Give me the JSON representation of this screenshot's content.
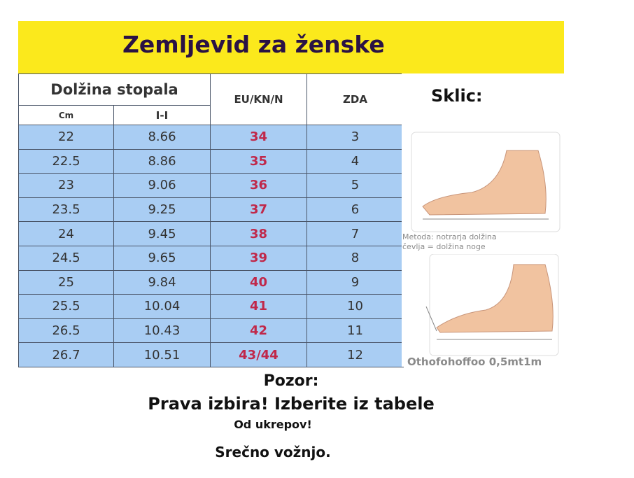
{
  "title": "Zemljevid za ženske",
  "header": {
    "foot_length": "Dolžina stopala",
    "cm": "Cm",
    "inch": "I-I",
    "eu": "EU/KN/N",
    "us": "ZDA",
    "reference": "Sklic:"
  },
  "rows": [
    {
      "cm": "22",
      "inch": "8.66",
      "eu": "34",
      "us": "3"
    },
    {
      "cm": "22.5",
      "inch": "8.86",
      "eu": "35",
      "us": "4"
    },
    {
      "cm": "23",
      "inch": "9.06",
      "eu": "36",
      "us": "5"
    },
    {
      "cm": "23.5",
      "inch": "9.25",
      "eu": "37",
      "us": "6"
    },
    {
      "cm": "24",
      "inch": "9.45",
      "eu": "38",
      "us": "7"
    },
    {
      "cm": "24.5",
      "inch": "9.65",
      "eu": "39",
      "us": "8"
    },
    {
      "cm": "25",
      "inch": "9.84",
      "eu": "40",
      "us": "9"
    },
    {
      "cm": "25.5",
      "inch": "10.04",
      "eu": "41",
      "us": "10"
    },
    {
      "cm": "26.5",
      "inch": "10.43",
      "eu": "42",
      "us": "11"
    },
    {
      "cm": "26.7",
      "inch": "10.51",
      "eu": "43/44",
      "us": "12"
    }
  ],
  "method_caption_1": "Metoda: notrarja dolžina",
  "method_caption_2": "čevlja = dolžina noge",
  "tolerance_caption": "Othofohoffoo 0,5mt1m",
  "footer": {
    "attention": "Pozor:",
    "line1": "Prava izbira! Izberite iz tabele",
    "line2": "Od ukrepov!",
    "line3": "Srečno vožnjo."
  },
  "colors": {
    "banner": "#fbe91c",
    "rows": "#a9cdf3",
    "eu_text": "#c0284a"
  }
}
